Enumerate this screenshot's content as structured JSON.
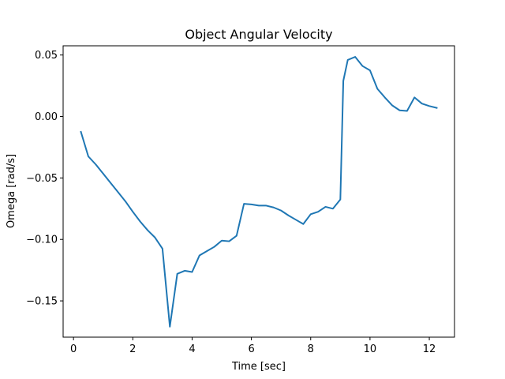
{
  "chart_data": {
    "type": "line",
    "title": "Object Angular Velocity",
    "xlabel": "Time [sec]",
    "ylabel": "Omega [rad/s]",
    "xlim": [
      -0.35,
      12.85
    ],
    "ylim": [
      -0.1795,
      0.0575
    ],
    "xticks": [
      0,
      2,
      4,
      6,
      8,
      10,
      12
    ],
    "yticks": [
      0.05,
      0.0,
      -0.05,
      -0.1,
      -0.15
    ],
    "xtick_labels": [
      "0",
      "2",
      "4",
      "6",
      "8",
      "10",
      "12"
    ],
    "ytick_labels": [
      "0.05",
      "0.00",
      "−0.05",
      "−0.10",
      "−0.15"
    ],
    "grid": false,
    "series": [
      {
        "color": "#1f77b4",
        "x": [
          0.25,
          0.5,
          0.75,
          1.0,
          1.25,
          1.5,
          1.75,
          2.0,
          2.25,
          2.5,
          2.75,
          3.0,
          3.25,
          3.5,
          3.75,
          4.0,
          4.25,
          4.5,
          4.75,
          5.0,
          5.25,
          5.5,
          5.75,
          6.0,
          6.25,
          6.5,
          6.75,
          7.0,
          7.25,
          7.5,
          7.75,
          8.0,
          8.25,
          8.5,
          8.75,
          9.0,
          9.1,
          9.25,
          9.5,
          9.75,
          10.0,
          10.25,
          10.5,
          10.75,
          11.0,
          11.25,
          11.5,
          11.75,
          12.0,
          12.25
        ],
        "y": [
          -0.0125,
          -0.0325,
          -0.039,
          -0.0465,
          -0.054,
          -0.0615,
          -0.069,
          -0.0775,
          -0.0855,
          -0.0925,
          -0.0985,
          -0.1075,
          -0.171,
          -0.128,
          -0.1255,
          -0.1265,
          -0.113,
          -0.1095,
          -0.106,
          -0.101,
          -0.1015,
          -0.097,
          -0.071,
          -0.0715,
          -0.0725,
          -0.0725,
          -0.074,
          -0.0765,
          -0.0805,
          -0.084,
          -0.0875,
          -0.0795,
          -0.0775,
          -0.0735,
          -0.075,
          -0.0675,
          0.029,
          0.046,
          0.0485,
          0.041,
          0.0375,
          0.0225,
          0.0155,
          0.009,
          0.005,
          0.0045,
          0.0155,
          0.0105,
          0.0085,
          0.007
        ]
      }
    ]
  }
}
